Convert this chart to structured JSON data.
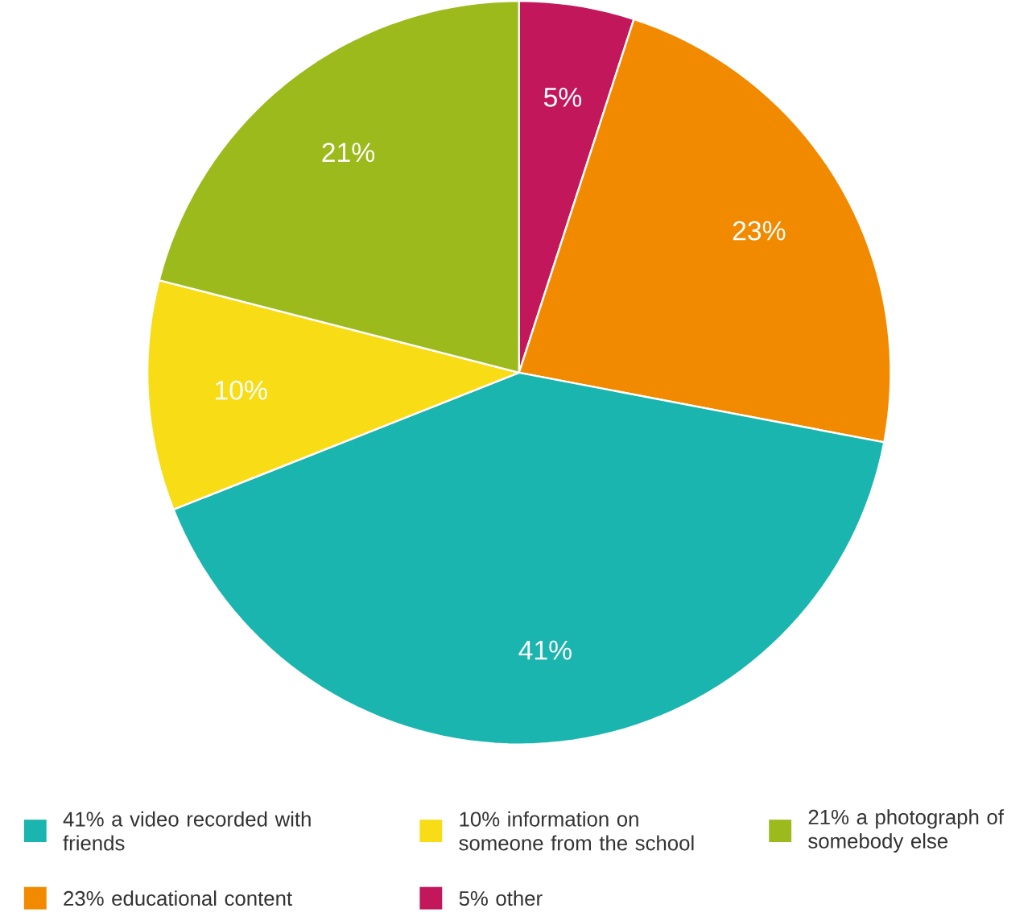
{
  "chart_data": {
    "type": "pie",
    "categories": [
      "5% other",
      "23% educational content",
      "41% a video recorded with friends",
      "10% information on someone from the school",
      "21% a photograph of somebody else"
    ],
    "values": [
      5,
      23,
      41,
      10,
      21
    ],
    "colors": [
      "#c2185b",
      "#f28a00",
      "#19b5ae",
      "#f7dc16",
      "#9cba1c"
    ],
    "value_labels": [
      "5%",
      "23%",
      "41%",
      "10%",
      "21%"
    ],
    "legend": "bottom"
  }
}
